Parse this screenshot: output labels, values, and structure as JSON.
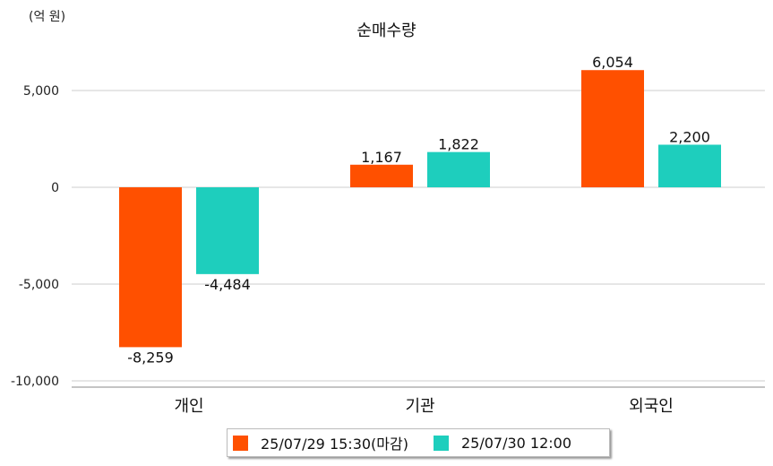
{
  "chart_data": {
    "type": "bar",
    "title": "순매수량",
    "unit_label": "(억 원)",
    "categories": [
      "개인",
      "기관",
      "외국인"
    ],
    "series": [
      {
        "name": "25/07/29 15:30(마감)",
        "color": "#ff5000",
        "values": [
          -8259,
          1167,
          6054
        ]
      },
      {
        "name": "25/07/30 12:00",
        "color": "#1ecebd",
        "values": [
          -4484,
          1822,
          2200
        ]
      }
    ],
    "value_labels": [
      [
        "-8,259",
        "1,167",
        "6,054"
      ],
      [
        "-4,484",
        "1,822",
        "2,200"
      ]
    ],
    "yticks": [
      5000,
      0,
      -5000,
      -10000
    ],
    "ytick_labels": [
      "5,000",
      "0",
      "-5,000",
      "-10,000"
    ],
    "ylim": [
      -10000,
      7500
    ],
    "grid": true,
    "legend_position": "bottom"
  }
}
